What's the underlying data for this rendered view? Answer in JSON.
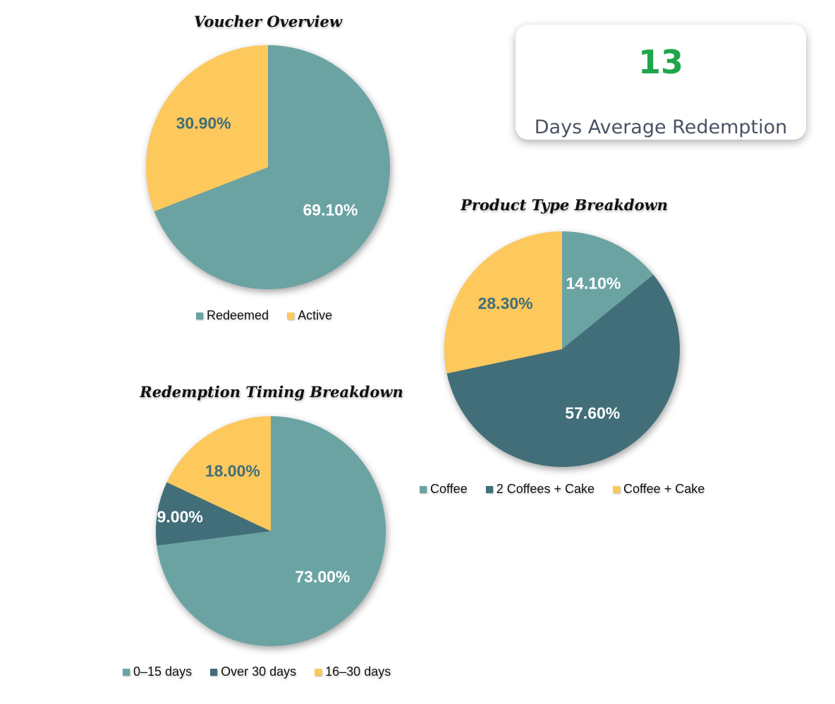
{
  "colors": {
    "teal": "#6ba3a3",
    "dark_teal": "#416e79",
    "yellow": "#fdc85c",
    "kpi_green": "#1fa64a"
  },
  "kpi": {
    "value": "13",
    "label": "Days Average Redemption"
  },
  "chart_data": [
    {
      "type": "pie",
      "title": "Voucher Overview",
      "slices": [
        {
          "name": "Redeemed",
          "value": 69.1,
          "label": "69.10%",
          "color": "#6ba3a3",
          "label_color": "#ffffff"
        },
        {
          "name": "Active",
          "value": 30.9,
          "label": "30.90%",
          "color": "#fdc85c",
          "label_color": "#416e79"
        }
      ],
      "legend_position": "bottom"
    },
    {
      "type": "pie",
      "title": "Product Type Breakdown",
      "slices": [
        {
          "name": "Coffee",
          "value": 14.1,
          "label": "14.10%",
          "color": "#6ba3a3",
          "label_color": "#ffffff"
        },
        {
          "name": "2 Coffees + Cake",
          "value": 57.6,
          "label": "57.60%",
          "color": "#416e79",
          "label_color": "#ffffff"
        },
        {
          "name": "Coffee + Cake",
          "value": 28.3,
          "label": "28.30%",
          "color": "#fdc85c",
          "label_color": "#416e79"
        }
      ],
      "legend_position": "bottom"
    },
    {
      "type": "pie",
      "title": "Redemption Timing Breakdown",
      "slices": [
        {
          "name": "0–15 days",
          "value": 73.0,
          "label": "73.00%",
          "color": "#6ba3a3",
          "label_color": "#ffffff"
        },
        {
          "name": "Over 30 days",
          "value": 9.0,
          "label": "9.00%",
          "color": "#416e79",
          "label_color": "#ffffff"
        },
        {
          "name": "16–30 days",
          "value": 18.0,
          "label": "18.00%",
          "color": "#fdc85c",
          "label_color": "#416e79"
        }
      ],
      "legend_position": "bottom"
    }
  ]
}
